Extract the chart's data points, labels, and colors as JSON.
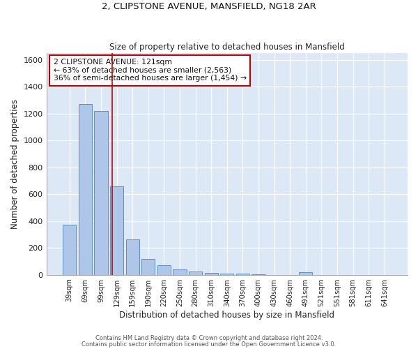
{
  "title1": "2, CLIPSTONE AVENUE, MANSFIELD, NG18 2AR",
  "title2": "Size of property relative to detached houses in Mansfield",
  "xlabel": "Distribution of detached houses by size in Mansfield",
  "ylabel": "Number of detached properties",
  "bar_labels": [
    "39sqm",
    "69sqm",
    "99sqm",
    "129sqm",
    "159sqm",
    "190sqm",
    "220sqm",
    "250sqm",
    "280sqm",
    "310sqm",
    "340sqm",
    "370sqm",
    "400sqm",
    "430sqm",
    "460sqm",
    "491sqm",
    "521sqm",
    "551sqm",
    "581sqm",
    "611sqm",
    "641sqm"
  ],
  "bar_values": [
    370,
    1270,
    1220,
    660,
    265,
    120,
    70,
    38,
    22,
    14,
    10,
    8,
    6,
    0,
    0,
    18,
    0,
    0,
    0,
    0,
    0
  ],
  "bar_color": "#aec6e8",
  "bar_edge_color": "#5b8fc9",
  "bg_color": "#dce8f5",
  "grid_color": "#ffffff",
  "vline_x": 2.72,
  "vline_color": "#c00000",
  "annotation_text": "2 CLIPSTONE AVENUE: 121sqm\n← 63% of detached houses are smaller (2,563)\n36% of semi-detached houses are larger (1,454) →",
  "annotation_box_color": "#ffffff",
  "annotation_box_edge": "#c00000",
  "footer1": "Contains HM Land Registry data © Crown copyright and database right 2024.",
  "footer2": "Contains public sector information licensed under the Open Government Licence v3.0.",
  "ylim": [
    0,
    1650
  ],
  "yticks": [
    0,
    200,
    400,
    600,
    800,
    1000,
    1200,
    1400,
    1600
  ]
}
